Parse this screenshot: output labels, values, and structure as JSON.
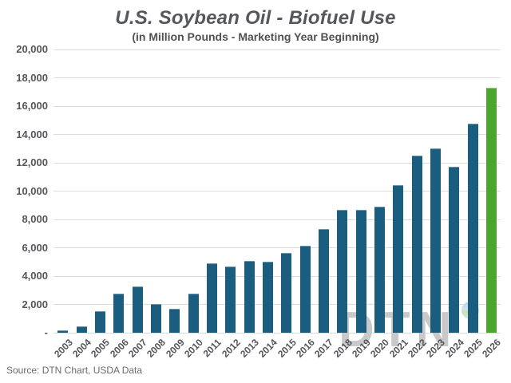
{
  "header": {
    "title": "U.S. Soybean Oil - Biofuel Use",
    "subtitle": "(in Million Pounds - Marketing Year Beginning)"
  },
  "footer": {
    "source": "Source: DTN Chart, USDA Data"
  },
  "watermark": {
    "text": "DTN",
    "globe_icon": "globe-icon"
  },
  "colors": {
    "bar_teal": "#1b5d7f",
    "bar_highlight_green": "#4ca52f",
    "gridline": "#dcdcdc",
    "heading_text": "#56575b",
    "axis_text": "#55565a",
    "source_text": "#6a6b6e",
    "watermark_gray": "#c9c9c9"
  },
  "chart_data": {
    "type": "bar",
    "title": "U.S. Soybean Oil - Biofuel Use",
    "subtitle": "(in Million Pounds - Marketing Year Beginning)",
    "xlabel": "",
    "ylabel": "",
    "categories": [
      "2003",
      "2004",
      "2005",
      "2006",
      "2007",
      "2008",
      "2009",
      "2010",
      "2011",
      "2012",
      "2013",
      "2014",
      "2015",
      "2016",
      "2017",
      "2018",
      "2019",
      "2020",
      "2021",
      "2022",
      "2023",
      "2024",
      "2025",
      "2026"
    ],
    "values": [
      150,
      450,
      1550,
      2750,
      3250,
      2050,
      1700,
      2750,
      4900,
      4700,
      5050,
      5000,
      5650,
      6150,
      7300,
      8700,
      8650,
      8900,
      10400,
      12500,
      13000,
      11700,
      14750,
      17300
    ],
    "highlight_last_bar": true,
    "ylim": [
      0,
      20000
    ],
    "ytick_interval": 2000,
    "ytick_labels": [
      "-",
      "2,000",
      "4,000",
      "6,000",
      "8,000",
      "10,000",
      "12,000",
      "14,000",
      "16,000",
      "18,000",
      "20,000"
    ],
    "grid": "horizontal",
    "legend_position": "none"
  }
}
